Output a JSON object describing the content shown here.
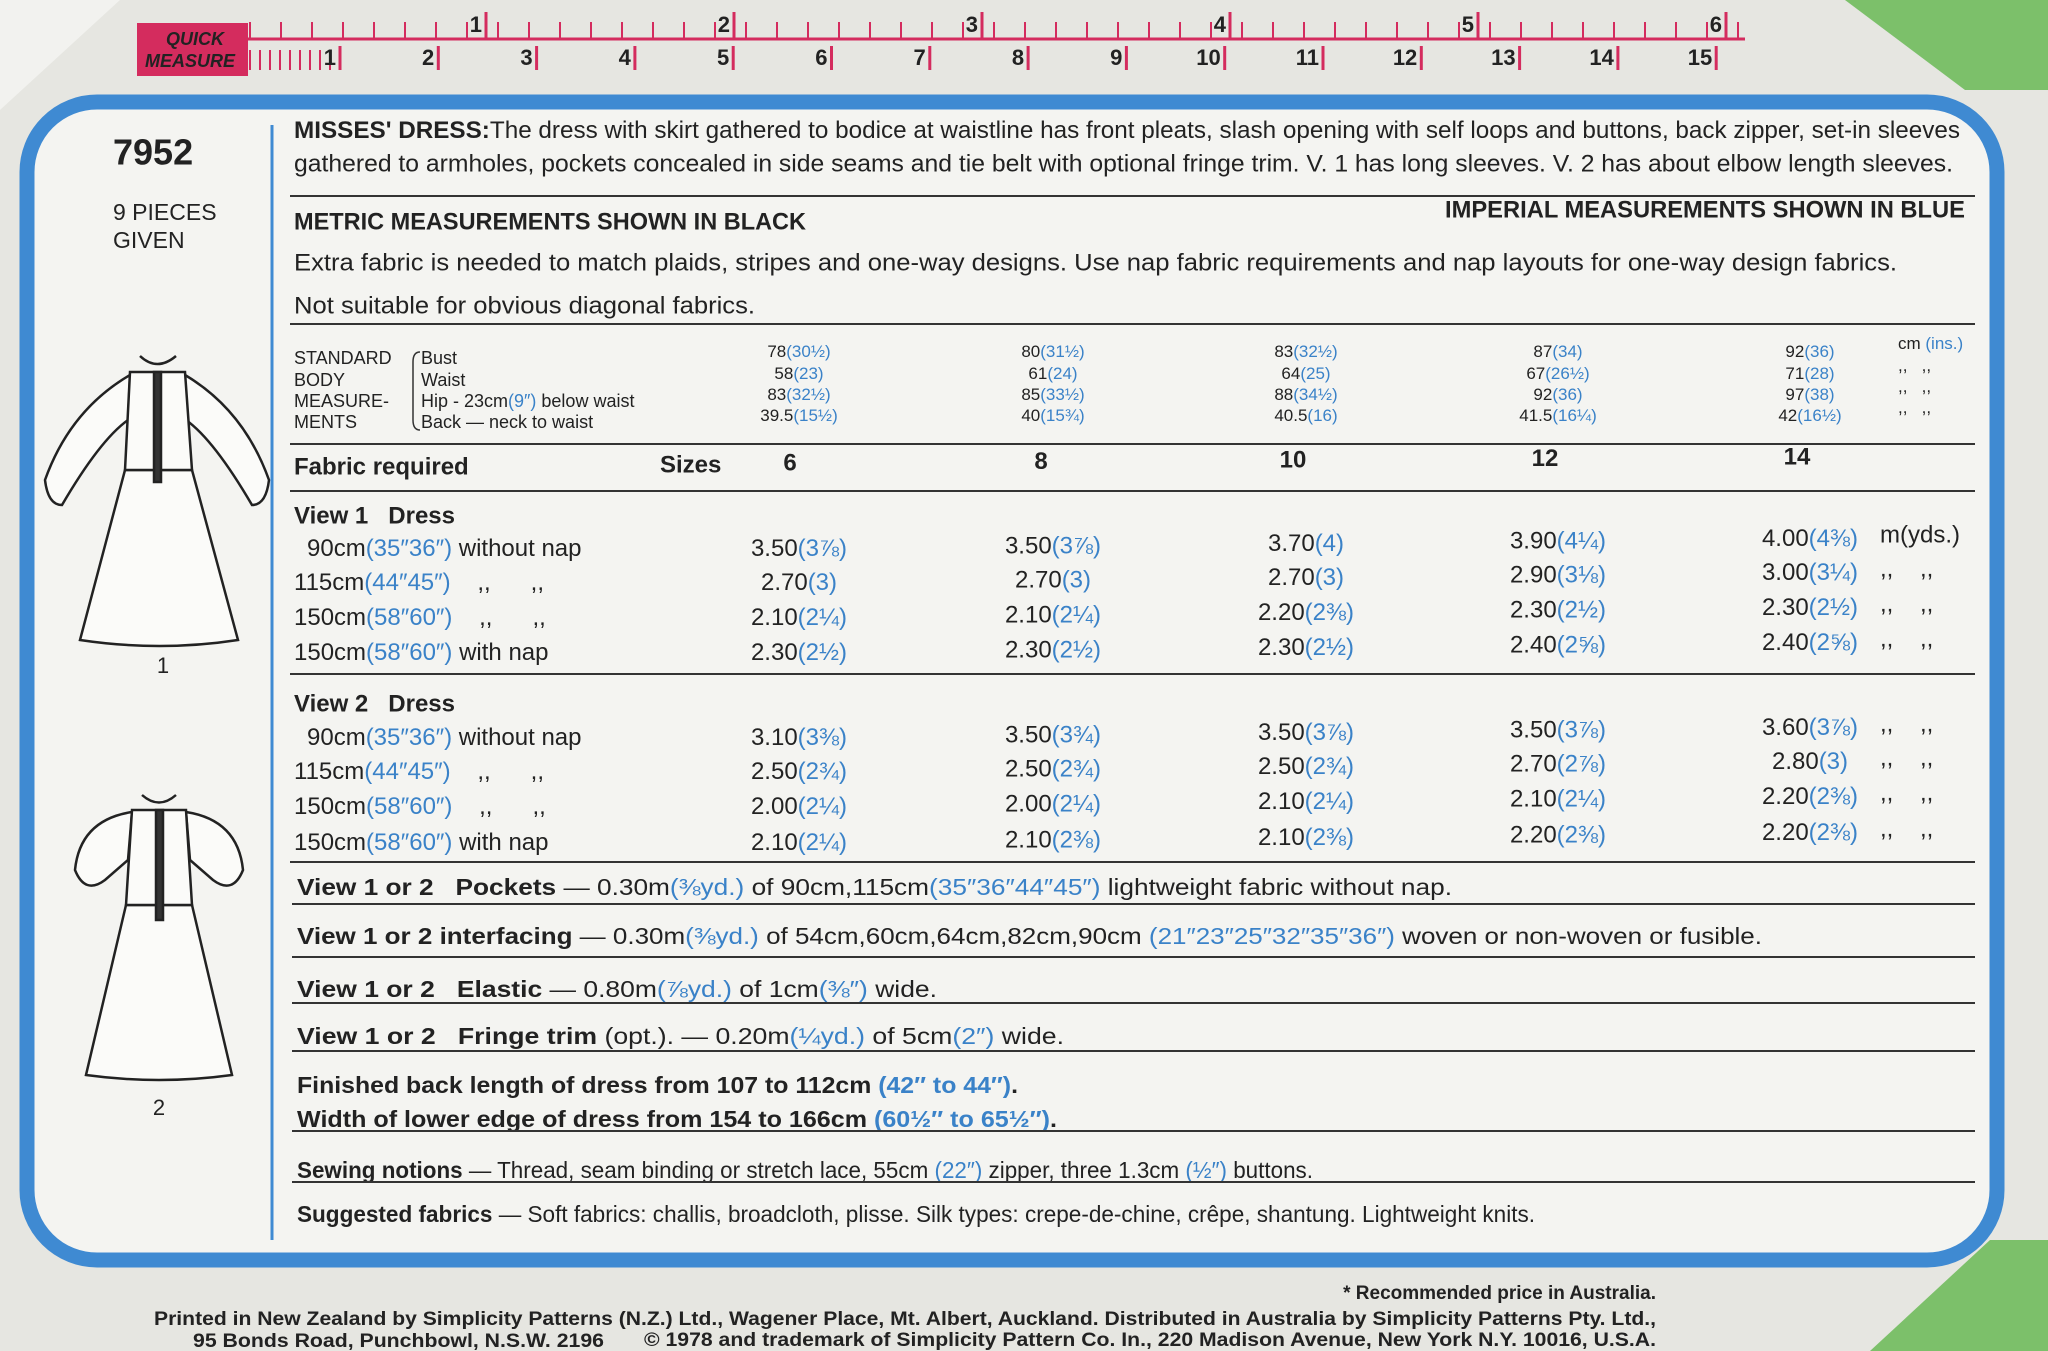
{
  "ruler": {
    "brand": [
      "QUICK",
      "MEASURE"
    ],
    "inches": [
      "1",
      "2",
      "3",
      "4",
      "5",
      "6"
    ],
    "centimetres": [
      "1",
      "2",
      "3",
      "4",
      "5",
      "6",
      "7",
      "8",
      "9",
      "10",
      "11",
      "12",
      "13",
      "14",
      "15"
    ]
  },
  "pattern": {
    "number": "7952",
    "pieces": [
      "9 PIECES",
      "GIVEN"
    ],
    "views": [
      "1",
      "2"
    ]
  },
  "description": {
    "heading": "MISSES' DRESS:",
    "lines": [
      "The dress with skirt gathered to bodice at waistline has front pleats, slash opening with self loops and buttons, back zipper, set-in sleeves",
      "gathered to armholes, pockets concealed in side seams and tie belt with optional fringe trim. V. 1 has long sleeves. V. 2 has about elbow length sleeves."
    ]
  },
  "headings": {
    "metric": "METRIC MEASUREMENTS SHOWN IN BLACK",
    "imperial": "IMPERIAL MEASUREMENTS SHOWN IN BLUE"
  },
  "note": [
    "Extra fabric is needed to match plaids, stripes and one-way designs. Use nap fabric requirements and nap layouts for one-way design fabrics.",
    "Not suitable for obvious diagonal fabrics."
  ],
  "body_measurements": {
    "title": [
      "STANDARD",
      "BODY",
      "MEASURE-",
      "MENTS"
    ],
    "rows": [
      [
        "Bust"
      ],
      [
        "Waist"
      ],
      [
        "Hip - 23cm",
        "(9″)",
        " below waist"
      ],
      [
        "Back — neck to waist"
      ]
    ],
    "units": [
      [
        "cm ",
        "(ins.)"
      ],
      [
        ",,   ,,"
      ],
      [
        ",,   ,,"
      ],
      [
        ",,   ,,"
      ]
    ],
    "sizes": [
      [
        [
          "78",
          "(30½)"
        ],
        [
          "58",
          "(23)"
        ],
        [
          "83",
          "(32½)"
        ],
        [
          "39.5",
          "(15½)"
        ]
      ],
      [
        [
          "80",
          "(31½)"
        ],
        [
          "61",
          "(24)"
        ],
        [
          "85",
          "(33½)"
        ],
        [
          "40",
          "(15¾)"
        ]
      ],
      [
        [
          "83",
          "(32½)"
        ],
        [
          "64",
          "(25)"
        ],
        [
          "88",
          "(34½)"
        ],
        [
          "40.5",
          "(16)"
        ]
      ],
      [
        [
          "87",
          "(34)"
        ],
        [
          "67",
          "(26½)"
        ],
        [
          "92",
          "(36)"
        ],
        [
          "41.5",
          "(16¼)"
        ]
      ],
      [
        [
          "92",
          "(36)"
        ],
        [
          "71",
          "(28)"
        ],
        [
          "97",
          "(38)"
        ],
        [
          "42",
          "(16½)"
        ]
      ]
    ]
  },
  "fabric": {
    "title": "Fabric required",
    "sizes_label": "Sizes",
    "sizes": [
      "6",
      "8",
      "10",
      "12",
      "14"
    ],
    "views": [
      {
        "title": "View 1   Dress",
        "rows": [
          {
            "label": [
              "90cm",
              "(35″36″)",
              " without nap"
            ],
            "cells": [
              [
                "3.50",
                "(3⅞)"
              ],
              [
                "3.50",
                "(3⅞)"
              ],
              [
                "3.70",
                "(4)"
              ],
              [
                "3.90",
                "(4¼)"
              ],
              [
                "4.00",
                "(4⅜)"
              ]
            ],
            "unit": "m(yds.)"
          },
          {
            "label": [
              "115cm",
              "(44″45″)",
              "    ,,      ,,"
            ],
            "cells": [
              [
                "2.70",
                "(3)"
              ],
              [
                "2.70",
                "(3)"
              ],
              [
                "2.70",
                "(3)"
              ],
              [
                "2.90",
                "(3⅛)"
              ],
              [
                "3.00",
                "(3¼)"
              ]
            ],
            "unit": ",,    ,,"
          },
          {
            "label": [
              "150cm",
              "(58″60″)",
              "    ,,      ,,"
            ],
            "cells": [
              [
                "2.10",
                "(2¼)"
              ],
              [
                "2.10",
                "(2¼)"
              ],
              [
                "2.20",
                "(2⅜)"
              ],
              [
                "2.30",
                "(2½)"
              ],
              [
                "2.30",
                "(2½)"
              ]
            ],
            "unit": ",,    ,,"
          },
          {
            "label": [
              "150cm",
              "(58″60″)",
              " with nap"
            ],
            "cells": [
              [
                "2.30",
                "(2½)"
              ],
              [
                "2.30",
                "(2½)"
              ],
              [
                "2.30",
                "(2½)"
              ],
              [
                "2.40",
                "(2⅝)"
              ],
              [
                "2.40",
                "(2⅝)"
              ]
            ],
            "unit": ",,    ,,"
          }
        ]
      },
      {
        "title": "View 2   Dress",
        "rows": [
          {
            "label": [
              "90cm",
              "(35″36″)",
              " without nap"
            ],
            "cells": [
              [
                "3.10",
                "(3⅜)"
              ],
              [
                "3.50",
                "(3¾)"
              ],
              [
                "3.50",
                "(3⅞)"
              ],
              [
                "3.50",
                "(3⅞)"
              ],
              [
                "3.60",
                "(3⅞)"
              ]
            ],
            "unit": ",,    ,,"
          },
          {
            "label": [
              "115cm",
              "(44″45″)",
              "    ,,      ,,"
            ],
            "cells": [
              [
                "2.50",
                "(2¾)"
              ],
              [
                "2.50",
                "(2¾)"
              ],
              [
                "2.50",
                "(2¾)"
              ],
              [
                "2.70",
                "(2⅞)"
              ],
              [
                "2.80",
                "(3)"
              ]
            ],
            "unit": ",,    ,,"
          },
          {
            "label": [
              "150cm",
              "(58″60″)",
              "    ,,      ,,"
            ],
            "cells": [
              [
                "2.00",
                "(2¼)"
              ],
              [
                "2.00",
                "(2¼)"
              ],
              [
                "2.10",
                "(2¼)"
              ],
              [
                "2.10",
                "(2¼)"
              ],
              [
                "2.20",
                "(2⅜)"
              ]
            ],
            "unit": ",,    ,,"
          },
          {
            "label": [
              "150cm",
              "(58″60″)",
              " with nap"
            ],
            "cells": [
              [
                "2.10",
                "(2¼)"
              ],
              [
                "2.10",
                "(2⅜)"
              ],
              [
                "2.10",
                "(2⅜)"
              ],
              [
                "2.20",
                "(2⅜)"
              ],
              [
                "2.20",
                "(2⅜)"
              ]
            ],
            "unit": ",,    ,,"
          }
        ]
      }
    ]
  },
  "extras": [
    {
      "lead": "View 1 or 2   Pockets",
      "spans": [
        " — 0.30m",
        "(⅜yd.)",
        " of 90cm,115cm",
        "(35″36″44″45″)",
        " lightweight fabric without nap."
      ]
    },
    {
      "lead": "View 1 or 2 interfacing",
      "spans": [
        " — 0.30m",
        "(⅜yd.)",
        " of 54cm,60cm,64cm,82cm,90cm ",
        "(21″23″25″32″35″36″)",
        " woven or non-woven or fusible."
      ]
    },
    {
      "lead": "View 1 or 2   Elastic",
      "spans": [
        " — 0.80m",
        "(⅞yd.)",
        " of 1cm",
        "(⅜″)",
        " wide."
      ]
    },
    {
      "lead": "View 1 or 2   Fringe trim",
      "spans": [
        " (opt.). — 0.20m",
        "(¼yd.)",
        " of 5cm",
        "(2″)",
        " wide."
      ]
    },
    {
      "spans": [
        "Finished back length of dress from 107 to 112cm ",
        "(42″ to 44″)",
        "."
      ],
      "bold": true
    },
    {
      "spans": [
        "Width of lower edge of dress from 154 to 166cm ",
        "(60½″ to 65½″)",
        "."
      ],
      "bold": true
    },
    {
      "lead": "Sewing notions",
      "spans": [
        " — Thread, seam binding or stretch lace, 55cm ",
        "(22″)",
        " zipper, three 1.3cm ",
        "(½″)",
        " buttons."
      ]
    },
    {
      "lead": "Suggested fabrics",
      "spans": [
        " — Soft fabrics: challis, broadcloth, plisse. Silk types: crepe-de-chine, crêpe, shantung. Lightweight knits."
      ]
    }
  ],
  "footer": {
    "price_note": "* Recommended price in Australia.",
    "printer": "Printed in New Zealand by Simplicity Patterns (N.Z.) Ltd., Wagener Place, Mt. Albert, Auckland. Distributed in Australia by Simplicity Patterns Pty. Ltd.,",
    "address": "95 Bonds Road, Punchbowl, N.S.W. 2196",
    "copyright": "© 1978 and trademark of Simplicity Pattern Co. In., 220 Madison Avenue, New York N.Y. 10016, U.S.A."
  }
}
